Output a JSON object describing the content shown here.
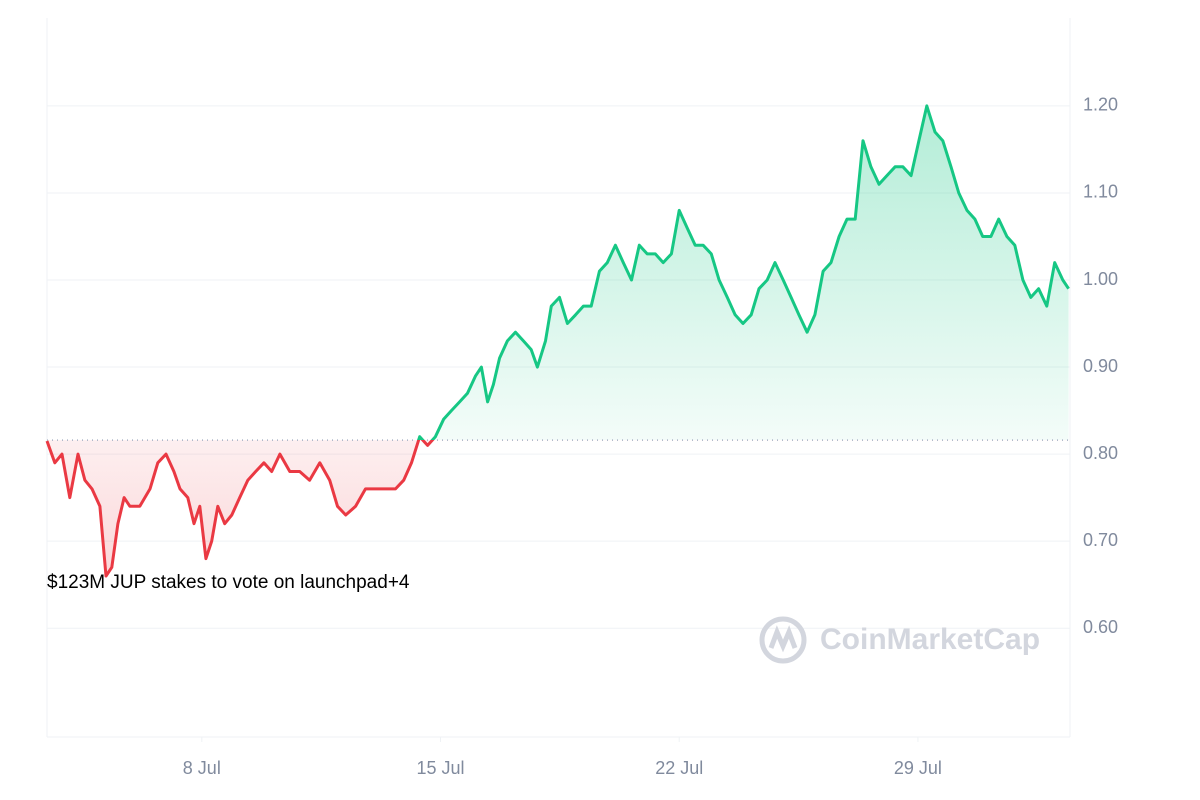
{
  "chart_data": {
    "type": "line",
    "annotation": "$123M JUP stakes to vote on launchpad+4",
    "watermark": "CoinMarketCap",
    "x": [
      3.46,
      3.69,
      3.9,
      4.13,
      4.37,
      4.57,
      4.78,
      5.01,
      5.19,
      5.36,
      5.54,
      5.72,
      5.89,
      6.18,
      6.48,
      6.71,
      6.95,
      7.18,
      7.36,
      7.59,
      7.77,
      7.94,
      8.12,
      8.29,
      8.47,
      8.67,
      8.88,
      9.11,
      9.35,
      9.58,
      9.82,
      10.05,
      10.29,
      10.58,
      10.87,
      11.16,
      11.46,
      11.75,
      11.98,
      12.22,
      12.51,
      12.8,
      13.1,
      13.39,
      13.68,
      13.92,
      14.15,
      14.39,
      14.62,
      14.85,
      15.09,
      15.32,
      15.56,
      15.79,
      16.03,
      16.2,
      16.38,
      16.55,
      16.73,
      16.96,
      17.2,
      17.43,
      17.66,
      17.84,
      18.08,
      18.25,
      18.49,
      18.72,
      18.96,
      19.19,
      19.42,
      19.66,
      19.89,
      20.13,
      20.36,
      20.6,
      20.83,
      21.06,
      21.3,
      21.53,
      21.77,
      22.0,
      22.23,
      22.47,
      22.7,
      22.94,
      23.17,
      23.41,
      23.64,
      23.87,
      24.11,
      24.34,
      24.58,
      24.81,
      25.05,
      25.28,
      25.51,
      25.75,
      25.98,
      26.22,
      26.45,
      26.69,
      26.92,
      27.16,
      27.39,
      27.62,
      27.86,
      28.09,
      28.33,
      28.56,
      28.8,
      29.03,
      29.26,
      29.5,
      29.73,
      29.97,
      30.2,
      30.44,
      30.67,
      30.9,
      31.14,
      31.37,
      31.61,
      31.84,
      32.08,
      32.31,
      32.54,
      32.78,
      33.01,
      33.25,
      33.42
    ],
    "values": [
      0.815,
      0.79,
      0.8,
      0.75,
      0.8,
      0.77,
      0.76,
      0.74,
      0.66,
      0.67,
      0.72,
      0.75,
      0.74,
      0.74,
      0.76,
      0.79,
      0.8,
      0.78,
      0.76,
      0.75,
      0.72,
      0.74,
      0.68,
      0.7,
      0.74,
      0.72,
      0.73,
      0.75,
      0.77,
      0.78,
      0.79,
      0.78,
      0.8,
      0.78,
      0.78,
      0.77,
      0.79,
      0.77,
      0.74,
      0.73,
      0.74,
      0.76,
      0.76,
      0.76,
      0.76,
      0.77,
      0.79,
      0.82,
      0.81,
      0.82,
      0.84,
      0.85,
      0.86,
      0.87,
      0.89,
      0.9,
      0.86,
      0.88,
      0.91,
      0.93,
      0.94,
      0.93,
      0.92,
      0.9,
      0.93,
      0.97,
      0.98,
      0.95,
      0.96,
      0.97,
      0.97,
      1.01,
      1.02,
      1.04,
      1.02,
      1.0,
      1.04,
      1.03,
      1.03,
      1.02,
      1.03,
      1.08,
      1.06,
      1.04,
      1.04,
      1.03,
      1.0,
      0.98,
      0.96,
      0.95,
      0.96,
      0.99,
      1.0,
      1.02,
      1.0,
      0.98,
      0.96,
      0.94,
      0.96,
      1.01,
      1.02,
      1.05,
      1.07,
      1.07,
      1.16,
      1.13,
      1.11,
      1.12,
      1.13,
      1.13,
      1.12,
      1.16,
      1.2,
      1.17,
      1.16,
      1.13,
      1.1,
      1.08,
      1.07,
      1.05,
      1.05,
      1.07,
      1.05,
      1.04,
      1.0,
      0.98,
      0.99,
      0.97,
      1.02,
      1.0,
      0.99
    ],
    "baseline": 0.816,
    "up_color": "#16c784",
    "down_color": "#ea3943",
    "xlim": [
      3.46,
      33.46
    ],
    "xticks": [
      {
        "value": 8,
        "label": "8 Jul"
      },
      {
        "value": 15,
        "label": "15 Jul"
      },
      {
        "value": 22,
        "label": "22 Jul"
      },
      {
        "value": 29,
        "label": "29 Jul"
      }
    ],
    "ylim": [
      0.475,
      1.301
    ],
    "yticks": [
      {
        "value": 0.6,
        "label": "0.60"
      },
      {
        "value": 0.7,
        "label": "0.70"
      },
      {
        "value": 0.8,
        "label": "0.80"
      },
      {
        "value": 0.9,
        "label": "0.90"
      },
      {
        "value": 1.0,
        "label": "1.00"
      },
      {
        "value": 1.1,
        "label": "1.10"
      },
      {
        "value": 1.2,
        "label": "1.20"
      }
    ],
    "grid": true
  }
}
